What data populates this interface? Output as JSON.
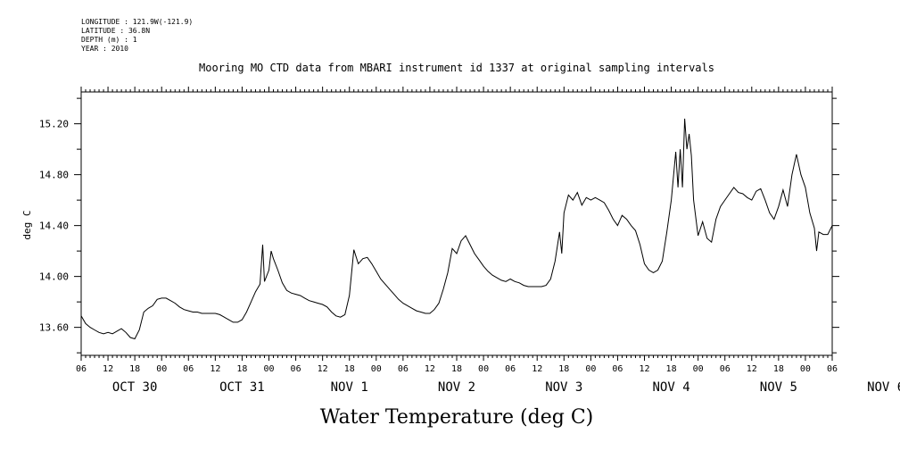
{
  "header": {
    "longitude": "LONGITUDE : 121.9W(-121.9)",
    "latitude": "LATITUDE : 36.8N",
    "depth": "DEPTH (m) : 1",
    "year": "YEAR : 2010"
  },
  "chart_data": {
    "type": "line",
    "title": "Mooring MO CTD data from MBARI instrument id 1337 at original sampling intervals",
    "xlabel": "Water Temperature (deg C)",
    "ylabel": "deg C",
    "ylim": [
      13.38,
      15.45
    ],
    "yticks": [
      "13.60",
      "14.00",
      "14.40",
      "14.80",
      "15.20"
    ],
    "xlim": [
      0,
      168
    ],
    "x_unit": "hours since OCT 30 06:00",
    "hour_ticks": [
      "06",
      "12",
      "18",
      "00",
      "06",
      "12",
      "18",
      "00",
      "06",
      "12",
      "18",
      "00",
      "06",
      "12",
      "18",
      "00",
      "06",
      "12",
      "18",
      "00",
      "06",
      "12",
      "18",
      "00",
      "06",
      "12",
      "18",
      "00",
      "06"
    ],
    "day_labels": [
      "OCT 30",
      "OCT 31",
      "NOV 1",
      "NOV 2",
      "NOV 3",
      "NOV 4",
      "NOV 5",
      "NOV 6"
    ],
    "series": [
      {
        "values": [
          [
            0,
            13.69
          ],
          [
            1,
            13.63
          ],
          [
            2,
            13.6
          ],
          [
            3,
            13.58
          ],
          [
            4,
            13.56
          ],
          [
            5,
            13.55
          ],
          [
            6,
            13.56
          ],
          [
            7,
            13.55
          ],
          [
            8,
            13.57
          ],
          [
            9,
            13.59
          ],
          [
            10,
            13.56
          ],
          [
            11,
            13.52
          ],
          [
            12,
            13.51
          ],
          [
            13,
            13.58
          ],
          [
            14,
            13.72
          ],
          [
            15,
            13.75
          ],
          [
            16,
            13.77
          ],
          [
            17,
            13.82
          ],
          [
            18,
            13.83
          ],
          [
            19,
            13.83
          ],
          [
            20,
            13.81
          ],
          [
            21,
            13.79
          ],
          [
            22,
            13.76
          ],
          [
            23,
            13.74
          ],
          [
            24,
            13.73
          ],
          [
            25,
            13.72
          ],
          [
            26,
            13.72
          ],
          [
            27,
            13.71
          ],
          [
            28,
            13.71
          ],
          [
            29,
            13.71
          ],
          [
            30,
            13.71
          ],
          [
            31,
            13.7
          ],
          [
            32,
            13.68
          ],
          [
            33,
            13.66
          ],
          [
            34,
            13.64
          ],
          [
            35,
            13.64
          ],
          [
            36,
            13.66
          ],
          [
            37,
            13.72
          ],
          [
            38,
            13.8
          ],
          [
            39,
            13.88
          ],
          [
            40,
            13.94
          ],
          [
            40.6,
            14.25
          ],
          [
            41,
            13.96
          ],
          [
            42,
            14.05
          ],
          [
            42.5,
            14.2
          ],
          [
            43,
            14.14
          ],
          [
            44,
            14.05
          ],
          [
            45,
            13.95
          ],
          [
            46,
            13.89
          ],
          [
            47,
            13.87
          ],
          [
            48,
            13.86
          ],
          [
            49,
            13.85
          ],
          [
            50,
            13.83
          ],
          [
            51,
            13.81
          ],
          [
            52,
            13.8
          ],
          [
            53,
            13.79
          ],
          [
            54,
            13.78
          ],
          [
            55,
            13.76
          ],
          [
            56,
            13.72
          ],
          [
            57,
            13.69
          ],
          [
            58,
            13.68
          ],
          [
            59,
            13.7
          ],
          [
            60,
            13.85
          ],
          [
            61,
            14.21
          ],
          [
            62,
            14.1
          ],
          [
            63,
            14.14
          ],
          [
            64,
            14.15
          ],
          [
            65,
            14.1
          ],
          [
            66,
            14.04
          ],
          [
            67,
            13.98
          ],
          [
            68,
            13.94
          ],
          [
            69,
            13.9
          ],
          [
            70,
            13.86
          ],
          [
            71,
            13.82
          ],
          [
            72,
            13.79
          ],
          [
            73,
            13.77
          ],
          [
            74,
            13.75
          ],
          [
            75,
            13.73
          ],
          [
            76,
            13.72
          ],
          [
            77,
            13.71
          ],
          [
            78,
            13.71
          ],
          [
            79,
            13.74
          ],
          [
            80,
            13.79
          ],
          [
            81,
            13.9
          ],
          [
            82,
            14.03
          ],
          [
            83,
            14.22
          ],
          [
            84,
            14.18
          ],
          [
            85,
            14.28
          ],
          [
            86,
            14.32
          ],
          [
            87,
            14.25
          ],
          [
            88,
            14.18
          ],
          [
            89,
            14.13
          ],
          [
            90,
            14.08
          ],
          [
            91,
            14.04
          ],
          [
            92,
            14.01
          ],
          [
            93,
            13.99
          ],
          [
            94,
            13.97
          ],
          [
            95,
            13.96
          ],
          [
            96,
            13.98
          ],
          [
            97,
            13.96
          ],
          [
            98,
            13.95
          ],
          [
            99,
            13.93
          ],
          [
            100,
            13.92
          ],
          [
            101,
            13.92
          ],
          [
            102,
            13.92
          ],
          [
            103,
            13.92
          ],
          [
            104,
            13.93
          ],
          [
            105,
            13.98
          ],
          [
            106,
            14.12
          ],
          [
            107,
            14.35
          ],
          [
            107.5,
            14.18
          ],
          [
            108,
            14.5
          ],
          [
            109,
            14.64
          ],
          [
            110,
            14.6
          ],
          [
            111,
            14.66
          ],
          [
            112,
            14.56
          ],
          [
            113,
            14.62
          ],
          [
            114,
            14.6
          ],
          [
            115,
            14.62
          ],
          [
            116,
            14.6
          ],
          [
            117,
            14.58
          ],
          [
            118,
            14.52
          ],
          [
            119,
            14.45
          ],
          [
            120,
            14.4
          ],
          [
            121,
            14.48
          ],
          [
            122,
            14.45
          ],
          [
            123,
            14.4
          ],
          [
            124,
            14.36
          ],
          [
            125,
            14.25
          ],
          [
            126,
            14.1
          ],
          [
            127,
            14.05
          ],
          [
            128,
            14.03
          ],
          [
            129,
            14.05
          ],
          [
            130,
            14.12
          ],
          [
            131,
            14.35
          ],
          [
            132,
            14.6
          ],
          [
            133,
            14.98
          ],
          [
            133.5,
            14.7
          ],
          [
            134,
            15.0
          ],
          [
            134.5,
            14.7
          ],
          [
            135,
            15.24
          ],
          [
            135.5,
            15.0
          ],
          [
            136,
            15.12
          ],
          [
            136.5,
            14.95
          ],
          [
            137,
            14.6
          ],
          [
            138,
            14.32
          ],
          [
            139,
            14.43
          ],
          [
            140,
            14.3
          ],
          [
            141,
            14.27
          ],
          [
            142,
            14.45
          ],
          [
            143,
            14.55
          ],
          [
            144,
            14.6
          ],
          [
            145,
            14.65
          ],
          [
            146,
            14.7
          ],
          [
            147,
            14.66
          ],
          [
            148,
            14.65
          ],
          [
            149,
            14.62
          ],
          [
            150,
            14.6
          ],
          [
            151,
            14.67
          ],
          [
            152,
            14.69
          ],
          [
            153,
            14.6
          ],
          [
            154,
            14.5
          ],
          [
            155,
            14.45
          ],
          [
            156,
            14.55
          ],
          [
            157,
            14.68
          ],
          [
            158,
            14.55
          ],
          [
            159,
            14.8
          ],
          [
            160,
            14.96
          ],
          [
            161,
            14.8
          ],
          [
            162,
            14.7
          ],
          [
            163,
            14.5
          ],
          [
            164,
            14.38
          ],
          [
            164.5,
            14.2
          ],
          [
            165,
            14.35
          ],
          [
            166,
            14.33
          ],
          [
            167,
            14.33
          ],
          [
            168,
            14.4
          ]
        ]
      }
    ]
  }
}
